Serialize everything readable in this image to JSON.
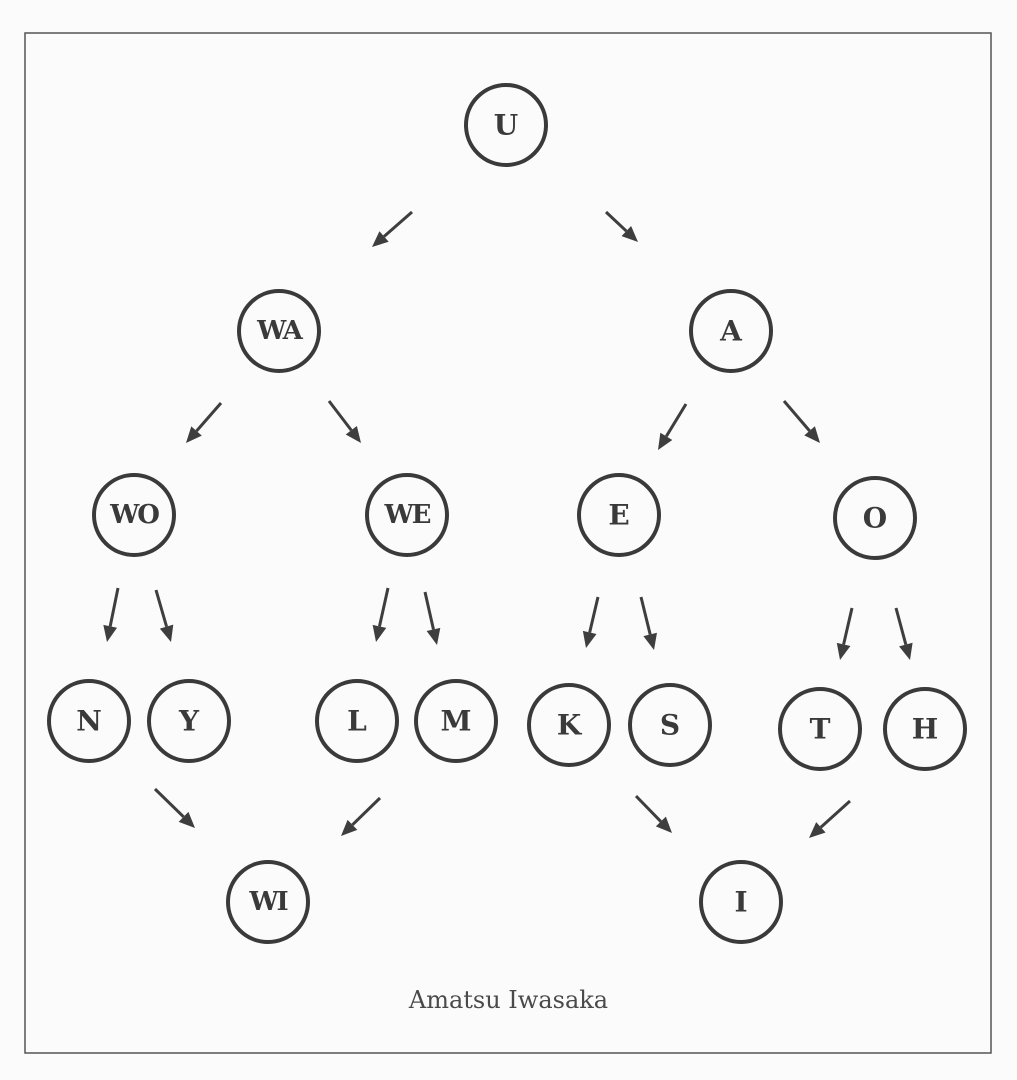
{
  "diagram": {
    "nodes": [
      {
        "id": "U",
        "label": "U"
      },
      {
        "id": "WA",
        "label": "WA"
      },
      {
        "id": "A",
        "label": "A"
      },
      {
        "id": "WO",
        "label": "WO"
      },
      {
        "id": "WE",
        "label": "WE"
      },
      {
        "id": "E",
        "label": "E"
      },
      {
        "id": "O",
        "label": "O"
      },
      {
        "id": "N",
        "label": "N"
      },
      {
        "id": "Y",
        "label": "Y"
      },
      {
        "id": "L",
        "label": "L"
      },
      {
        "id": "M",
        "label": "M"
      },
      {
        "id": "K",
        "label": "K"
      },
      {
        "id": "S",
        "label": "S"
      },
      {
        "id": "T",
        "label": "T"
      },
      {
        "id": "H",
        "label": "H"
      },
      {
        "id": "WI",
        "label": "WI"
      },
      {
        "id": "I",
        "label": "I"
      }
    ],
    "edges": [
      {
        "from": "U",
        "to": "WA"
      },
      {
        "from": "U",
        "to": "A"
      },
      {
        "from": "WA",
        "to": "WO"
      },
      {
        "from": "WA",
        "to": "WE"
      },
      {
        "from": "A",
        "to": "E"
      },
      {
        "from": "A",
        "to": "O"
      },
      {
        "from": "WO",
        "to": "N"
      },
      {
        "from": "WO",
        "to": "Y"
      },
      {
        "from": "WE",
        "to": "L"
      },
      {
        "from": "WE",
        "to": "M"
      },
      {
        "from": "E",
        "to": "K"
      },
      {
        "from": "E",
        "to": "S"
      },
      {
        "from": "O",
        "to": "T"
      },
      {
        "from": "O",
        "to": "H"
      },
      {
        "from": "Y",
        "to": "WI"
      },
      {
        "from": "L",
        "to": "WI"
      },
      {
        "from": "S",
        "to": "I"
      },
      {
        "from": "T",
        "to": "I"
      }
    ]
  },
  "caption": "Amatsu Iwasaka"
}
